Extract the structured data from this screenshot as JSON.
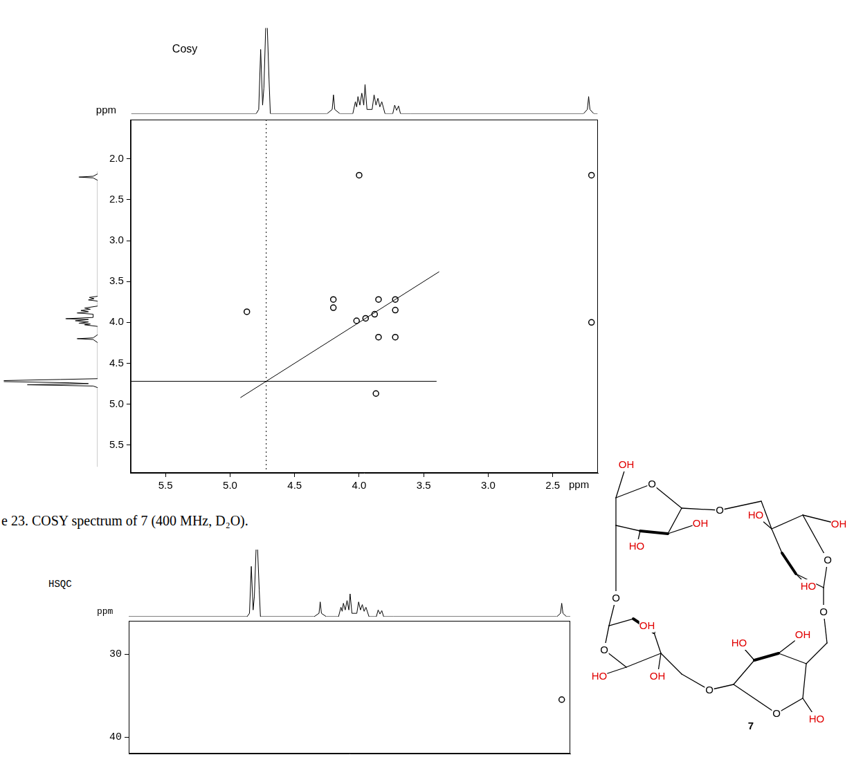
{
  "chart_data": [
    {
      "type": "scatter",
      "title": "Cosy",
      "xlabel": "ppm",
      "ylabel": "ppm",
      "xlim": [
        5.77,
        2.15
      ],
      "ylim": [
        5.84,
        1.52
      ],
      "xticks": [
        5.5,
        {
          "value": 5,
          "label": "5.0"
        },
        4.5,
        {
          "value": 4,
          "label": "4.0"
        },
        3.5,
        {
          "value": 3,
          "label": "3.0"
        },
        2.5
      ],
      "yticks": [
        {
          "value": 2,
          "label": "2.0"
        },
        2.5,
        {
          "value": 3,
          "label": "3.0"
        },
        3.5,
        {
          "value": 4,
          "label": "4.0"
        },
        4.5,
        {
          "value": 5,
          "label": "5.0"
        },
        5.5
      ],
      "grid": false,
      "series": [
        {
          "type": "scatter",
          "marker": "circle",
          "color": "#000000",
          "x": [
            4.87,
            3.87,
            4.2,
            4.2,
            3.72,
            3.85,
            3.85,
            3.72,
            4.0,
            2.2,
            2.2,
            3.95,
            4.02,
            3.88,
            3.72
          ],
          "values": [
            3.87,
            4.87,
            3.72,
            3.82,
            4.18,
            4.18,
            3.72,
            3.85,
            2.2,
            4.0,
            2.2,
            3.95,
            3.98,
            3.9,
            3.72
          ]
        },
        {
          "type": "line",
          "line_style": "solid",
          "color": "#000000",
          "x": [
            3.38,
            4.92
          ],
          "values": [
            3.38,
            4.92
          ]
        },
        {
          "type": "line",
          "line_style": "solid",
          "color": "#000000",
          "x": [
            5.77,
            3.4
          ],
          "values": [
            4.72,
            4.72
          ]
        },
        {
          "type": "line",
          "line_style": "dotted",
          "color": "#000000",
          "x": [
            4.72,
            4.72
          ],
          "values": [
            1.52,
            5.84
          ]
        }
      ],
      "spectrum_1d": {
        "ylim": [
          0,
          1
        ],
        "x": [
          5.77,
          4.8,
          4.78,
          4.765,
          4.75,
          4.74,
          4.72,
          4.7,
          4.69,
          4.25,
          4.21,
          4.2,
          4.19,
          4.15,
          4.05,
          4.03,
          4.02,
          4.01,
          3.995,
          3.98,
          3.965,
          3.955,
          3.94,
          3.9,
          3.885,
          3.87,
          3.855,
          3.84,
          3.825,
          3.8,
          3.74,
          3.725,
          3.71,
          3.695,
          3.68,
          3.6,
          2.26,
          2.23,
          2.22,
          2.21,
          2.18,
          2.15
        ],
        "values": [
          0,
          0,
          0.05,
          0.75,
          0.1,
          0.3,
          1.3,
          0.4,
          0,
          0,
          0.05,
          0.22,
          0.05,
          0,
          0,
          0.14,
          0.08,
          0.2,
          0.1,
          0.24,
          0.1,
          0.34,
          0.05,
          0.05,
          0.22,
          0.1,
          0.18,
          0.08,
          0.14,
          0,
          0,
          0.1,
          0.04,
          0.09,
          0,
          0,
          0,
          0.05,
          0.2,
          0.05,
          0,
          0
        ]
      }
    },
    {
      "type": "scatter",
      "title": "HSQC",
      "ylabel": "ppm",
      "xlim": [
        5.77,
        2.15
      ],
      "ylim": [
        42,
        26
      ],
      "xticks": [],
      "yticks": [
        30,
        40
      ],
      "grid": false,
      "tick_labels": "y",
      "series": [
        {
          "type": "scatter",
          "marker": "circle",
          "color": "#000000",
          "x": [
            2.22
          ],
          "values": [
            35.5
          ]
        }
      ],
      "spectrum_1d": {
        "ylim": [
          0,
          1
        ],
        "x": [
          5.77,
          4.8,
          4.78,
          4.765,
          4.75,
          4.74,
          4.72,
          4.7,
          4.69,
          4.25,
          4.21,
          4.2,
          4.19,
          4.15,
          4.05,
          4.03,
          4.02,
          4.01,
          3.995,
          3.98,
          3.965,
          3.955,
          3.94,
          3.9,
          3.885,
          3.87,
          3.855,
          3.84,
          3.825,
          3.8,
          3.74,
          3.725,
          3.71,
          3.695,
          3.68,
          3.6,
          2.26,
          2.23,
          2.22,
          2.21,
          2.18,
          2.15
        ],
        "values": [
          0,
          0,
          0.05,
          0.75,
          0.1,
          0.3,
          1.3,
          0.4,
          0,
          0,
          0.05,
          0.22,
          0.05,
          0,
          0,
          0.14,
          0.08,
          0.2,
          0.1,
          0.24,
          0.1,
          0.34,
          0.05,
          0.05,
          0.22,
          0.1,
          0.18,
          0.08,
          0.14,
          0,
          0,
          0.1,
          0.04,
          0.09,
          0,
          0,
          0,
          0.05,
          0.2,
          0.05,
          0,
          0
        ]
      }
    }
  ],
  "caption": "e 23.  COSY spectrum of 7 (400 MHz, D₂O).",
  "structure": {
    "labels": [
      "OH",
      "O",
      "O",
      "OH",
      "HO",
      "OH",
      "HO",
      "O",
      "HO",
      "O",
      "O",
      "OH",
      "O",
      "OH",
      "HO",
      "OH",
      "HO",
      "O",
      "7",
      "O",
      "HO"
    ]
  }
}
